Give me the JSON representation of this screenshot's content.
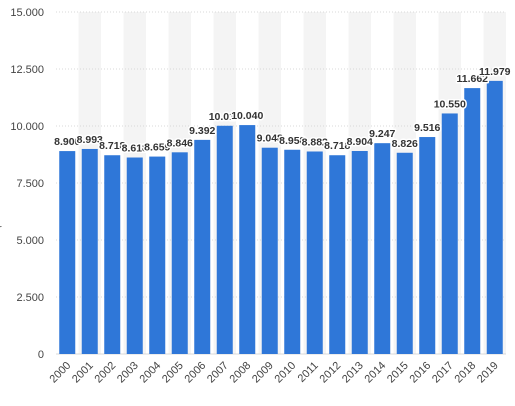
{
  "chart_data": {
    "type": "bar",
    "categories": [
      "2000",
      "2001",
      "2002",
      "2003",
      "2004",
      "2005",
      "2006",
      "2007",
      "2008",
      "2009",
      "2010",
      "2011",
      "2012",
      "2013",
      "2014",
      "2015",
      "2016",
      "2017",
      "2018",
      "2019"
    ],
    "values": [
      8900,
      8993,
      8718,
      8618,
      8659,
      8846,
      9392,
      10010,
      10040,
      9048,
      8958,
      8882,
      8718,
      8904,
      9247,
      8826,
      9516,
      10550,
      11662,
      11979
    ],
    "data_labels": [
      "8.900",
      "8.993",
      "8.718",
      "8.618",
      "8.659",
      "8.846",
      "9.392",
      "10.010",
      "10.040",
      "9.048",
      "8.958",
      "8.882",
      "8.718",
      "8.904",
      "9.247",
      "8.826",
      "9.516",
      "10.550",
      "11.662",
      "11.979"
    ],
    "y_ticks": [
      0,
      2500,
      5000,
      7500,
      10000,
      12500,
      15000
    ],
    "y_tick_labels": [
      "0",
      "2.500",
      "5.000",
      "7.500",
      "10.000",
      "12.500",
      "15.000"
    ],
    "ylim": [
      0,
      15000
    ],
    "title": "",
    "xlabel": "",
    "ylabel": "",
    "y_axis_fragment": "r",
    "grid": true,
    "legend": "none",
    "colors": {
      "bar": "#2f77d8",
      "column_band": "#f4f4f4",
      "gridline": "#d9d9d9"
    }
  }
}
